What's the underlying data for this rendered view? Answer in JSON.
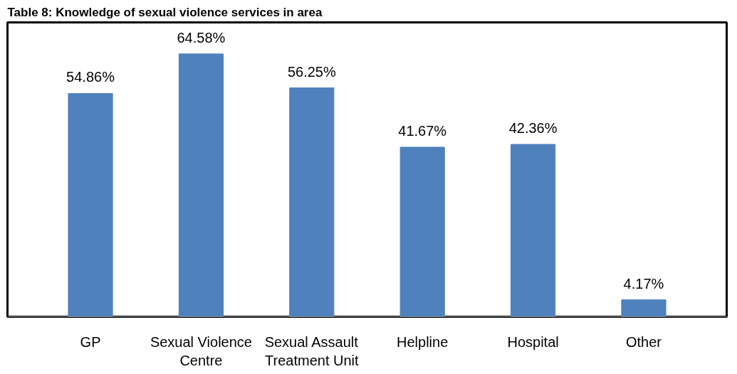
{
  "chart_data": {
    "type": "bar",
    "title": "Table 8: Knowledge of sexual violence services in area",
    "categories": [
      "GP",
      "Sexual Violence Centre",
      "Sexual Assault Treatment Unit",
      "Helpline",
      "Hospital",
      "Other"
    ],
    "values": [
      54.86,
      64.58,
      56.25,
      41.67,
      42.36,
      4.17
    ],
    "value_labels": [
      "54.86%",
      "64.58%",
      "56.25%",
      "41.67%",
      "42.36%",
      "4.17%"
    ],
    "color": "#4f81bd"
  }
}
